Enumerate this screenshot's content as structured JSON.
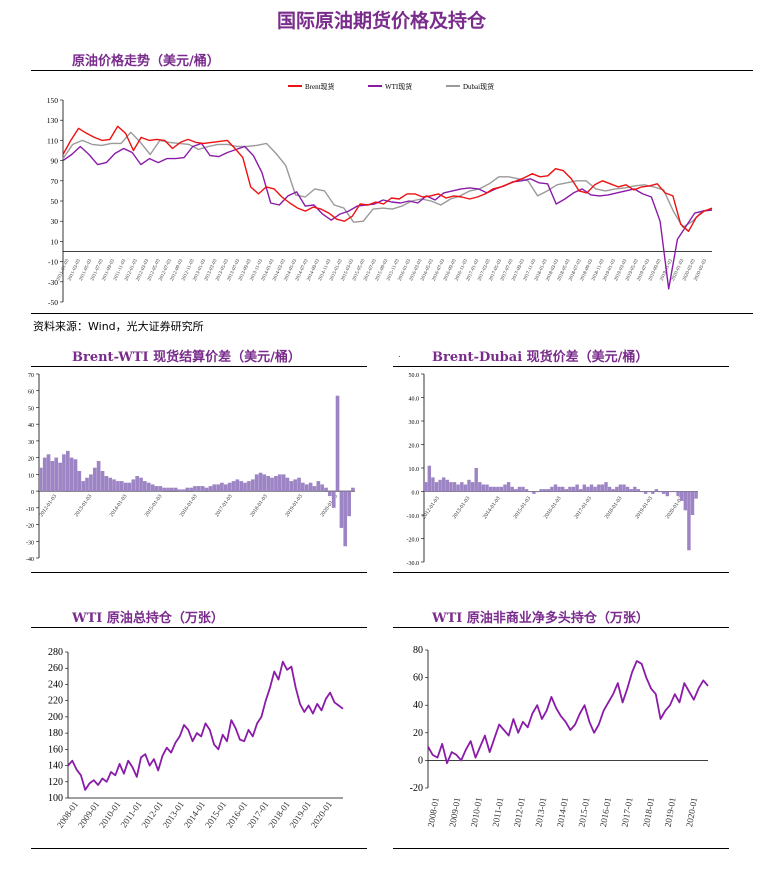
{
  "page": {
    "title": "国际原油期货价格及持仓",
    "source": "资料来源：Wind，光大证券研究所",
    "dot": "."
  },
  "chart_data": [
    {
      "id": "price",
      "type": "line",
      "title": "原油价格走势（美元/桶）",
      "legend": "top-center",
      "y_ticks": [
        -50,
        -30,
        -10,
        10,
        30,
        50,
        70,
        90,
        110,
        130,
        150
      ],
      "ylim": [
        -50,
        150
      ],
      "x_labels": [
        "2011-01-03",
        "2011-03-03",
        "2011-05-03",
        "2011-07-03",
        "2011-09-03",
        "2011-11-03",
        "2012-01-03",
        "2012-03-03",
        "2012-05-03",
        "2012-07-03",
        "2012-09-03",
        "2012-11-03",
        "2013-01-03",
        "2013-03-03",
        "2013-05-03",
        "2013-07-03",
        "2013-09-03",
        "2013-11-03",
        "2014-01-03",
        "2014-03-03",
        "2014-05-03",
        "2014-07-03",
        "2014-09-03",
        "2014-11-03",
        "2015-01-03",
        "2015-03-03",
        "2015-05-03",
        "2015-07-03",
        "2015-09-03",
        "2015-11-03",
        "2016-01-03",
        "2016-03-03",
        "2016-05-03",
        "2016-07-03",
        "2016-09-03",
        "2016-11-03",
        "2017-01-03",
        "2017-03-03",
        "2017-05-03",
        "2017-07-03",
        "2017-09-03",
        "2017-11-03",
        "2018-01-03",
        "2018-03-03",
        "2018-05-03",
        "2018-07-03",
        "2018-09-03",
        "2018-11-03",
        "2019-01-03",
        "2019-03-03",
        "2019-05-03",
        "2019-07-03",
        "2019-09-03",
        "2019-11-03",
        "2020-01-03",
        "2020-03-03",
        "2020-05-03"
      ],
      "colors": {
        "Brent现货": "#ee1111",
        "WTI现货": "#8a1ba8",
        "Dubai现货": "#9a9a9a"
      },
      "series": [
        {
          "name": "Brent现货",
          "values": [
            96,
            110,
            122,
            117,
            113,
            110,
            111,
            124,
            117,
            100,
            113,
            110,
            111,
            110,
            102,
            108,
            111,
            108,
            107,
            108,
            109,
            110,
            102,
            93,
            64,
            57,
            64,
            62,
            54,
            48,
            43,
            40,
            44,
            42,
            38,
            32,
            30,
            35,
            47,
            46,
            49,
            47,
            53,
            52,
            57,
            57,
            54,
            55,
            57,
            53,
            55,
            54,
            52,
            54,
            57,
            62,
            64,
            67,
            70,
            73,
            77,
            74,
            75,
            82,
            80,
            72,
            60,
            58,
            66,
            70,
            67,
            64,
            66,
            61,
            64,
            65,
            67,
            58,
            55,
            27,
            20,
            34,
            40,
            43
          ],
          "xref": "weekly"
        },
        {
          "name": "WTI现货",
          "values": [
            90,
            96,
            104,
            96,
            86,
            88,
            97,
            102,
            98,
            86,
            92,
            88,
            92,
            92,
            93,
            104,
            107,
            95,
            94,
            98,
            101,
            104,
            95,
            78,
            48,
            46,
            55,
            59,
            45,
            46,
            37,
            31,
            37,
            40,
            45,
            46,
            47,
            51,
            49,
            48,
            50,
            48,
            55,
            51,
            58,
            60,
            62,
            63,
            62,
            58,
            62,
            65,
            69,
            70,
            72,
            68,
            67,
            47,
            52,
            58,
            62,
            56,
            55,
            56,
            58,
            60,
            62,
            57,
            54,
            30,
            -37,
            12,
            25,
            38,
            40,
            41
          ],
          "xref": "weekly"
        },
        {
          "name": "Dubai现货",
          "values": [
            92,
            106,
            110,
            106,
            105,
            107,
            107,
            118,
            108,
            96,
            110,
            108,
            107,
            106,
            101,
            104,
            106,
            106,
            104,
            104,
            105,
            107,
            97,
            85,
            56,
            54,
            62,
            60,
            46,
            43,
            29,
            30,
            42,
            43,
            42,
            45,
            50,
            52,
            50,
            46,
            52,
            55,
            60,
            62,
            67,
            74,
            74,
            72,
            70,
            55,
            60,
            66,
            68,
            70,
            70,
            62,
            60,
            62,
            63,
            65,
            66,
            64,
            61,
            40,
            24,
            30,
            40,
            42
          ],
          "xref": "weekly"
        }
      ]
    },
    {
      "id": "brent-wti",
      "type": "bar",
      "title": "Brent-WTI 现货结算价差（美元/桶）",
      "y_ticks": [
        -40,
        -30,
        -20,
        -10,
        0,
        10,
        20,
        30,
        40,
        50,
        60,
        70
      ],
      "ylim": [
        -40,
        70
      ],
      "x_labels": [
        "2012-01-03",
        "2013-01-03",
        "2014-01-03",
        "2015-01-03",
        "2016-01-03",
        "2017-01-03",
        "2018-01-03",
        "2019-01-03",
        "2020-01-03"
      ],
      "color": "#9d84c4",
      "values": [
        14,
        20,
        22,
        18,
        20,
        17,
        22,
        24,
        20,
        19,
        12,
        6,
        8,
        10,
        14,
        18,
        12,
        9,
        8,
        7,
        6,
        6,
        5,
        5,
        7,
        9,
        8,
        6,
        5,
        4,
        3,
        3,
        2,
        2,
        2,
        2,
        1,
        1,
        2,
        2,
        3,
        3,
        3,
        2,
        3,
        4,
        4,
        5,
        4,
        5,
        6,
        7,
        6,
        5,
        6,
        7,
        10,
        11,
        10,
        9,
        8,
        9,
        10,
        10,
        8,
        6,
        7,
        8,
        5,
        4,
        5,
        3,
        6,
        4,
        2,
        -3,
        -10,
        57,
        -22,
        -33,
        -15,
        2
      ]
    },
    {
      "id": "brent-dubai",
      "type": "bar",
      "title": "Brent-Dubai 现货价差（美元/桶）",
      "y_ticks": [
        -30.0,
        -20.0,
        -10.0,
        0.0,
        10.0,
        20.0,
        30.0,
        40.0,
        50.0
      ],
      "ylim": [
        -30,
        50
      ],
      "x_labels": [
        "2012-01-03",
        "2013-01-03",
        "2014-01-03",
        "2015-01-03",
        "2016-01-03",
        "2017-01-03",
        "2018-01-03",
        "2019-01-03",
        "2020-01-03"
      ],
      "color": "#9d84c4",
      "values": [
        4,
        11,
        6,
        4,
        5,
        6,
        5,
        4,
        4,
        3,
        4,
        3,
        5,
        4,
        10,
        4,
        3,
        3,
        2,
        2,
        2,
        2,
        3,
        4,
        2,
        1,
        2,
        2,
        1,
        0,
        -1,
        0,
        1,
        1,
        1,
        2,
        3,
        2,
        2,
        1,
        2,
        2,
        3,
        1,
        3,
        2,
        3,
        2,
        3,
        3,
        4,
        2,
        1,
        2,
        3,
        3,
        2,
        1,
        2,
        1,
        0,
        -1,
        0,
        -1,
        1,
        0,
        -1,
        -2,
        0,
        0,
        -2,
        -4,
        -8,
        -25,
        -10,
        -3
      ]
    },
    {
      "id": "wti-oi",
      "type": "line",
      "title": "WTI 原油总持仓（万张）",
      "color": "#8a1ba8",
      "y_ticks": [
        100,
        120,
        140,
        160,
        180,
        200,
        220,
        240,
        260,
        280
      ],
      "ylim": [
        100,
        280
      ],
      "x_labels": [
        "2008-01",
        "2009-01",
        "2010-01",
        "2011-01",
        "2012-01",
        "2013-01",
        "2014-01",
        "2015-01",
        "2016-01",
        "2017-01",
        "2018-01",
        "2019-01",
        "2020-01"
      ],
      "values": [
        140,
        146,
        135,
        128,
        110,
        118,
        122,
        116,
        124,
        120,
        132,
        128,
        142,
        130,
        146,
        138,
        126,
        150,
        154,
        140,
        148,
        134,
        152,
        162,
        156,
        168,
        176,
        190,
        184,
        170,
        180,
        176,
        192,
        184,
        166,
        160,
        178,
        170,
        196,
        186,
        172,
        170,
        184,
        176,
        192,
        200,
        220,
        236,
        256,
        246,
        268,
        258,
        262,
        236,
        216,
        206,
        214,
        204,
        216,
        208,
        222,
        230,
        218,
        214,
        210
      ]
    },
    {
      "id": "wti-net-long",
      "type": "line",
      "title": "WTI 原油非商业净多头持仓（万张）",
      "color": "#8a1ba8",
      "y_ticks": [
        -20,
        0,
        20,
        40,
        60,
        80
      ],
      "ylim": [
        -20,
        80
      ],
      "x_labels": [
        "2008-01",
        "2009-01",
        "2010-01",
        "2011-01",
        "2012-01",
        "2013-01",
        "2014-01",
        "2015-01",
        "2016-01",
        "2017-01",
        "2018-01",
        "2019-01",
        "2020-01"
      ],
      "values": [
        10,
        4,
        2,
        12,
        -2,
        6,
        4,
        0,
        8,
        14,
        2,
        10,
        18,
        6,
        16,
        26,
        22,
        18,
        30,
        20,
        28,
        24,
        34,
        40,
        30,
        36,
        46,
        38,
        32,
        28,
        22,
        26,
        34,
        40,
        28,
        20,
        26,
        36,
        42,
        48,
        56,
        42,
        52,
        64,
        72,
        70,
        60,
        52,
        48,
        30,
        36,
        40,
        48,
        42,
        56,
        50,
        44,
        52,
        58,
        54
      ]
    }
  ]
}
